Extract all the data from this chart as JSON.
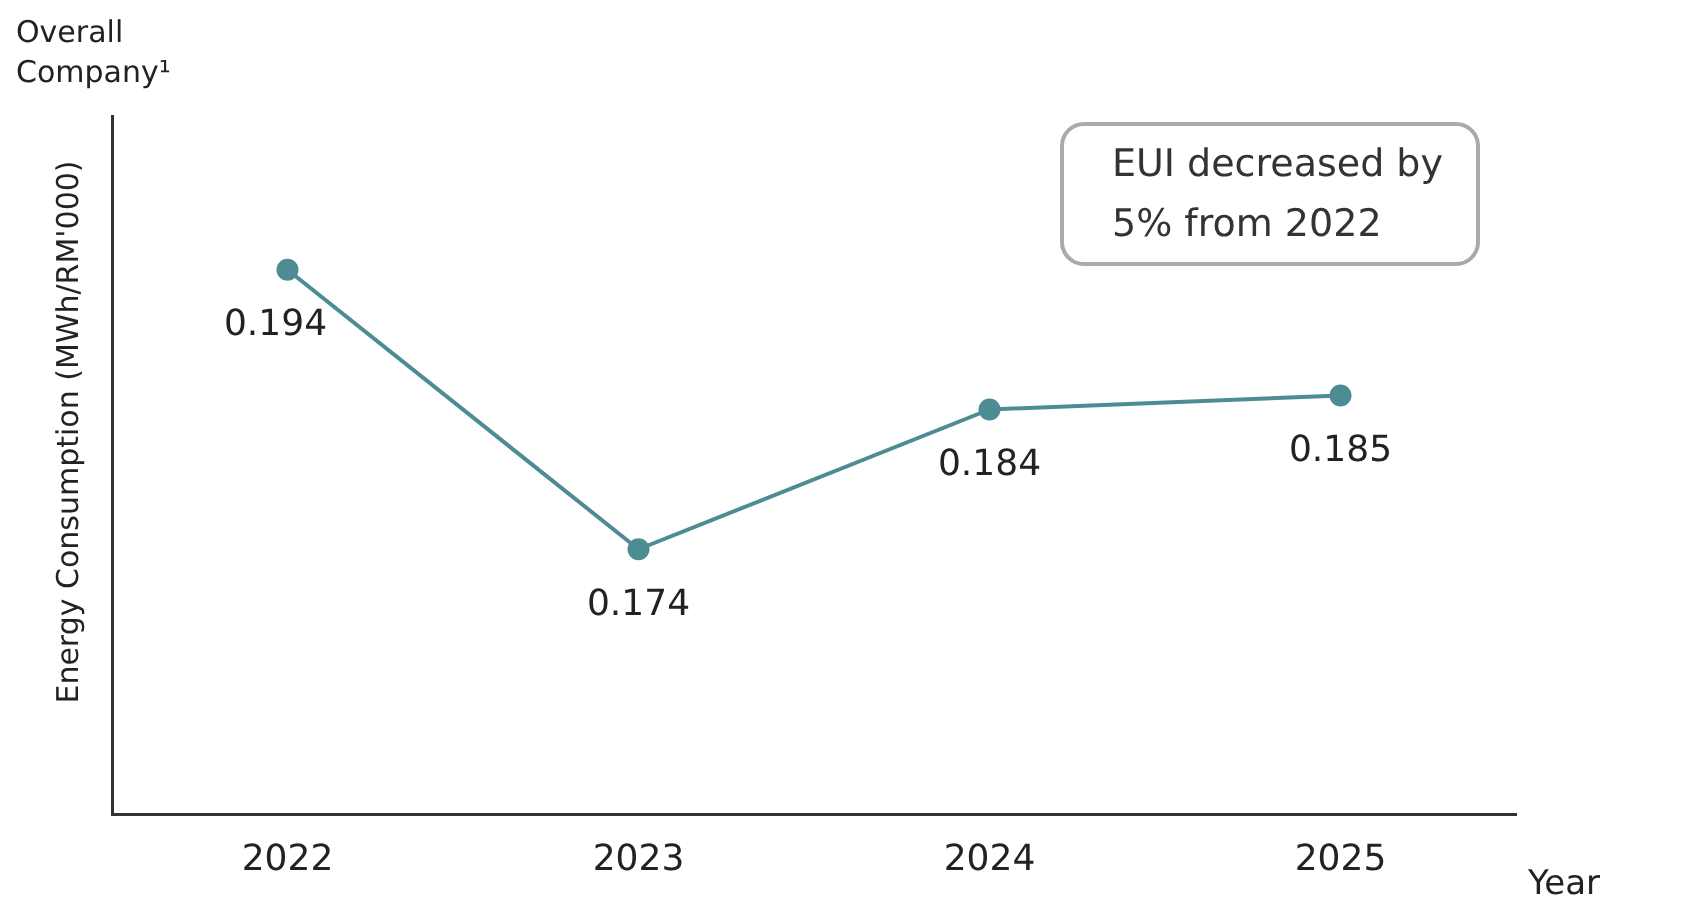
{
  "chart_data": {
    "type": "line",
    "title": "Overall Company¹",
    "xlabel": "Year",
    "ylabel": "Energy Consumption (MWh/RM'000)",
    "categories": [
      "2022",
      "2023",
      "2024",
      "2025"
    ],
    "series": [
      {
        "color": "#4e8c94",
        "values": [
          0.194,
          0.174,
          0.184,
          0.185
        ]
      }
    ],
    "ylim": [
      0.155,
      0.205
    ],
    "tick_labels": "x",
    "data_labels": true,
    "marker": "circle",
    "line_style": "solid",
    "grid": false,
    "legend": false,
    "annotations": [
      "EUI decreased by 5% from 2022"
    ]
  }
}
